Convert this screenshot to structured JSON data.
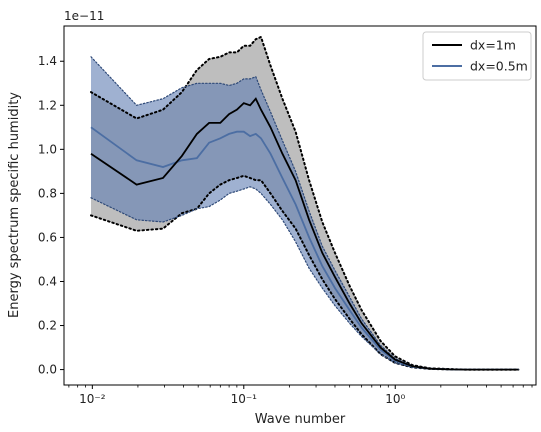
{
  "chart_data": {
    "type": "line",
    "title": "",
    "xlabel": "Wave number",
    "ylabel": "Energy spectrum specific humidity",
    "offset_label": "1e−11",
    "x_scale": "log",
    "xlim": [
      0.0065,
      8.5
    ],
    "ylim": [
      -0.07,
      1.56
    ],
    "x_ticks": [
      0.01,
      0.1,
      1
    ],
    "x_tick_labels": [
      "10⁻²",
      "10⁻¹",
      "10⁰"
    ],
    "y_ticks": [
      0.0,
      0.2,
      0.4,
      0.6,
      0.8,
      1.0,
      1.2,
      1.4
    ],
    "y_tick_labels": [
      "0.0",
      "0.2",
      "0.4",
      "0.6",
      "0.8",
      "1.0",
      "1.2",
      "1.4"
    ],
    "grid": false,
    "legend_position": "top-right",
    "series": [
      {
        "name": "dx=1m",
        "color": "#000000",
        "band_color": "#888888",
        "x": [
          0.0098,
          0.0196,
          0.0293,
          0.039,
          0.049,
          0.059,
          0.07,
          0.08,
          0.09,
          0.1,
          0.11,
          0.12,
          0.13,
          0.15,
          0.18,
          0.22,
          0.27,
          0.33,
          0.4,
          0.5,
          0.6,
          0.8,
          1.0,
          1.3,
          1.7,
          2.3,
          3.0,
          4.0,
          5.0,
          6.5
        ],
        "mean": [
          0.98,
          0.84,
          0.87,
          0.97,
          1.07,
          1.12,
          1.12,
          1.16,
          1.18,
          1.21,
          1.2,
          1.23,
          1.18,
          1.1,
          0.98,
          0.86,
          0.68,
          0.53,
          0.42,
          0.3,
          0.21,
          0.1,
          0.045,
          0.015,
          0.004,
          0.001,
          0.0,
          0.0,
          0.0,
          0.0
        ],
        "upper": [
          1.26,
          1.14,
          1.18,
          1.26,
          1.36,
          1.41,
          1.42,
          1.44,
          1.44,
          1.47,
          1.47,
          1.5,
          1.51,
          1.38,
          1.23,
          1.08,
          0.86,
          0.67,
          0.53,
          0.38,
          0.27,
          0.13,
          0.06,
          0.02,
          0.006,
          0.002,
          0.0,
          0.0,
          0.0,
          0.0
        ],
        "lower": [
          0.7,
          0.63,
          0.64,
          0.71,
          0.73,
          0.8,
          0.84,
          0.86,
          0.87,
          0.88,
          0.87,
          0.86,
          0.86,
          0.8,
          0.72,
          0.64,
          0.52,
          0.41,
          0.32,
          0.23,
          0.16,
          0.07,
          0.03,
          0.01,
          0.003,
          0.001,
          0.0,
          0.0,
          0.0,
          0.0
        ]
      },
      {
        "name": "dx=0.5m",
        "color": "#4c6ea3",
        "band_color": "#5f7db3",
        "x": [
          0.0098,
          0.0196,
          0.0293,
          0.039,
          0.049,
          0.059,
          0.07,
          0.08,
          0.09,
          0.1,
          0.11,
          0.12,
          0.13,
          0.15,
          0.18,
          0.22,
          0.27,
          0.33,
          0.4,
          0.5,
          0.6,
          0.8,
          1.0,
          1.3,
          1.7,
          2.3,
          3.0,
          4.0,
          5.0,
          6.5
        ],
        "mean": [
          1.1,
          0.95,
          0.92,
          0.95,
          0.96,
          1.03,
          1.05,
          1.07,
          1.08,
          1.08,
          1.06,
          1.07,
          1.05,
          0.98,
          0.87,
          0.75,
          0.6,
          0.47,
          0.37,
          0.27,
          0.19,
          0.09,
          0.04,
          0.013,
          0.004,
          0.001,
          0.0,
          0.0,
          0.0,
          0.0
        ],
        "upper": [
          1.42,
          1.2,
          1.23,
          1.28,
          1.3,
          1.3,
          1.3,
          1.29,
          1.3,
          1.32,
          1.32,
          1.33,
          1.27,
          1.17,
          1.04,
          0.9,
          0.72,
          0.56,
          0.45,
          0.33,
          0.23,
          0.11,
          0.05,
          0.017,
          0.005,
          0.001,
          0.0,
          0.0,
          0.0,
          0.0
        ],
        "lower": [
          0.78,
          0.68,
          0.67,
          0.7,
          0.73,
          0.74,
          0.77,
          0.8,
          0.81,
          0.82,
          0.83,
          0.82,
          0.8,
          0.75,
          0.68,
          0.58,
          0.46,
          0.37,
          0.29,
          0.21,
          0.15,
          0.07,
          0.03,
          0.01,
          0.003,
          0.001,
          0.0,
          0.0,
          0.0,
          0.0
        ]
      }
    ]
  }
}
